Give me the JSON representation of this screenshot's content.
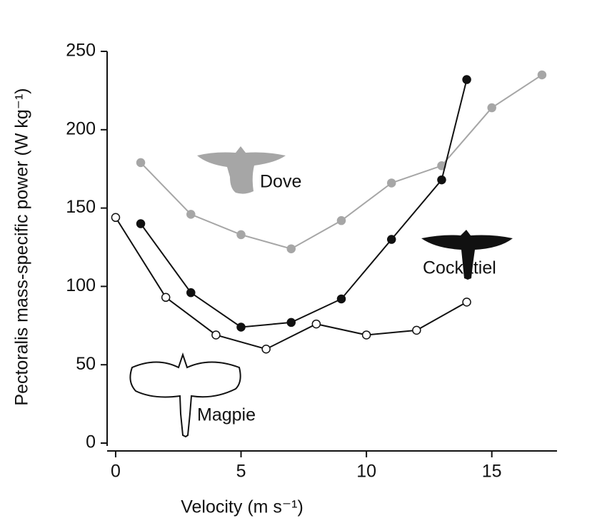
{
  "chart_data": {
    "type": "line",
    "xlabel": "Velocity (m s⁻¹)",
    "ylabel": "Pectoralis mass-specific power (W kg⁻¹)",
    "xlim": [
      -0.34,
      17.6
    ],
    "xticks": [
      0,
      5,
      10,
      15
    ],
    "ylim": [
      0,
      250
    ],
    "yticks": [
      0,
      50,
      100,
      150,
      200,
      250
    ],
    "series": [
      {
        "name": "Dove",
        "color": "#a6a6a6",
        "marker_fill": "#a6a6a6",
        "x": [
          1,
          3,
          5,
          7,
          9,
          11,
          13,
          15,
          17
        ],
        "values": [
          179,
          146,
          133,
          124,
          142,
          166,
          177,
          214,
          235
        ]
      },
      {
        "name": "Cockatiel",
        "color": "#111111",
        "marker_fill": "#111111",
        "x": [
          1,
          3,
          5,
          7,
          9,
          11,
          13,
          14
        ],
        "values": [
          140,
          96,
          74,
          77,
          92,
          130,
          168,
          232
        ]
      },
      {
        "name": "Magpie",
        "color": "#111111",
        "marker_fill": "#ffffff",
        "x": [
          0,
          2,
          4,
          6,
          8,
          10,
          12,
          14
        ],
        "values": [
          144,
          93,
          69,
          60,
          76,
          69,
          72,
          90
        ]
      }
    ]
  }
}
